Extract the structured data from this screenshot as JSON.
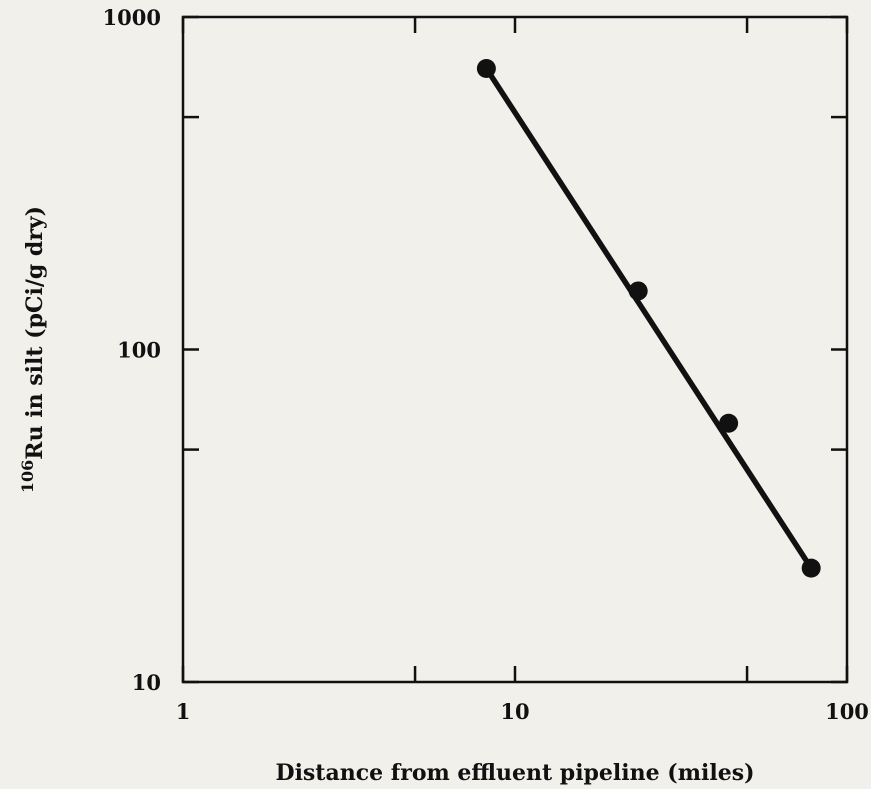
{
  "chart_data": {
    "type": "scatter",
    "xscale": "log",
    "yscale": "log",
    "xlim": [
      1,
      100
    ],
    "ylim": [
      10,
      1000
    ],
    "xlabel": "Distance from effluent pipeline (miles)",
    "ylabel": {
      "superscript": "106",
      "text": "Ru in silt (pCi/g dry)"
    },
    "xticks": [
      {
        "value": 1,
        "label": "1"
      },
      {
        "value": 10,
        "label": "10"
      },
      {
        "value": 100,
        "label": "100"
      }
    ],
    "yticks": [
      {
        "value": 10,
        "label": "10"
      },
      {
        "value": 100,
        "label": "100"
      },
      {
        "value": 1000,
        "label": "1000"
      }
    ],
    "minor_ticks_x": [
      5,
      50
    ],
    "minor_ticks_y": [
      50,
      500
    ],
    "grid": false,
    "series": [
      {
        "color": "#111111",
        "marker": "circle",
        "x": [
          8.2,
          23.5,
          44,
          78
        ],
        "y": [
          700,
          150,
          60,
          22
        ]
      }
    ],
    "fit_line": {
      "color": "#111111",
      "x": [
        8.2,
        78
      ],
      "y": [
        700,
        22
      ]
    }
  }
}
